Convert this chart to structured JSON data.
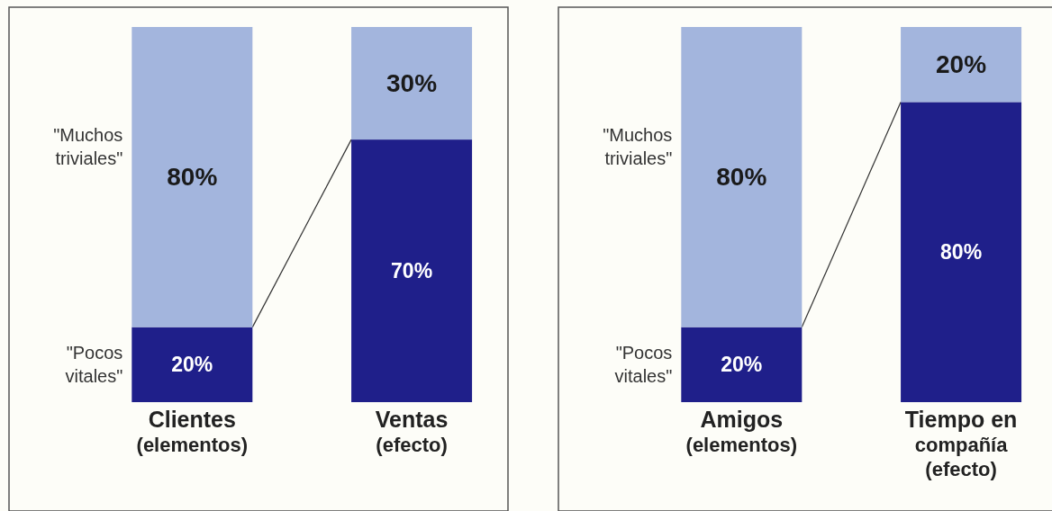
{
  "chart_data": [
    {
      "type": "bar",
      "stacked": true,
      "categories": [
        "Clientes\n(elementos)",
        "Ventas\n(efecto)"
      ],
      "legend": false,
      "series": [
        {
          "name": "\"Pocos\nvitales\"",
          "color": "#1f1f8a",
          "values": [
            20,
            70
          ],
          "value_labels": [
            "20%",
            "70%"
          ]
        },
        {
          "name": "\"Muchos\ntriviales\"",
          "color": "#a3b5dd",
          "values": [
            80,
            30
          ],
          "value_labels": [
            "80%",
            "30%"
          ]
        }
      ]
    },
    {
      "type": "bar",
      "stacked": true,
      "categories": [
        "Amigos\n(elementos)",
        "Tiempo en\ncompañía\n(efecto)"
      ],
      "legend": false,
      "series": [
        {
          "name": "\"Pocos\nvitales\"",
          "color": "#1f1f8a",
          "values": [
            20,
            80
          ],
          "value_labels": [
            "20%",
            "80%"
          ]
        },
        {
          "name": "\"Muchos\ntriviales\"",
          "color": "#a3b5dd",
          "values": [
            80,
            20
          ],
          "value_labels": [
            "80%",
            "20%"
          ]
        }
      ]
    }
  ]
}
